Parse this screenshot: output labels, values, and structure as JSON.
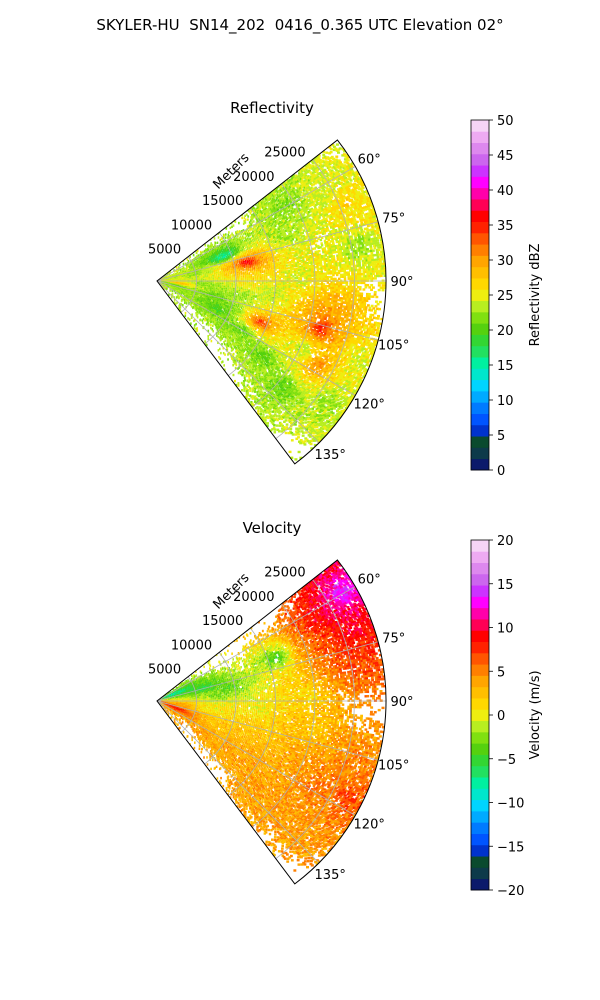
{
  "figure": {
    "suptitle": "SKYLER-HU  SN14_202  0416_0.365 UTC Elevation 02°"
  },
  "chart_data": [
    {
      "type": "heatmap",
      "projection": "polar sector (PPI)",
      "title": "Reflectivity",
      "radial_label": "Meters",
      "radial_ticks": [
        5000,
        10000,
        15000,
        20000,
        25000
      ],
      "radial_tick_labels": [
        "5000",
        "10000",
        "15000",
        "20000",
        "25000"
      ],
      "range_max": 29000,
      "azimuth_range": [
        52,
        143
      ],
      "azimuth_ticks": [
        60,
        75,
        90,
        105,
        120,
        135
      ],
      "azimuth_tick_labels": [
        "60°",
        "75°",
        "90°",
        "105°",
        "120°",
        "135°"
      ],
      "grid": true,
      "colorbar": {
        "label": "Reflectivity dBZ",
        "min": 0,
        "max": 50,
        "ticks": [
          0,
          5,
          10,
          15,
          20,
          25,
          30,
          35,
          40,
          45,
          50
        ],
        "tick_labels": [
          "0",
          "5",
          "10",
          "15",
          "20",
          "25",
          "30",
          "35",
          "40",
          "45",
          "50"
        ],
        "colors": [
          "#0b1a6b",
          "#0d3a4a",
          "#0a4a2e",
          "#0033cc",
          "#0055ff",
          "#007bff",
          "#00aaff",
          "#00d4ff",
          "#00e6cc",
          "#00f0a0",
          "#22e060",
          "#33d633",
          "#55d10f",
          "#80e010",
          "#b8ee20",
          "#eeee10",
          "#ffd800",
          "#ffbf00",
          "#ffa500",
          "#ff7f00",
          "#ff5500",
          "#ff2200",
          "#ff0000",
          "#ff0055",
          "#ff00aa",
          "#ff00ff",
          "#cc33ff",
          "#cc66ee",
          "#dd88ee",
          "#eeaaf2",
          "#f7d4f7"
        ]
      },
      "field_cells": [
        {
          "r": 2500,
          "az": 105,
          "v": 20
        },
        {
          "r": 2000,
          "az": 88,
          "v": 24
        },
        {
          "r": 3000,
          "az": 98,
          "v": 30
        },
        {
          "r": 5000,
          "az": 80,
          "v": 22
        },
        {
          "r": 6000,
          "az": 95,
          "v": 21
        },
        {
          "r": 7500,
          "az": 105,
          "v": 20
        },
        {
          "r": 8500,
          "az": 115,
          "v": 18
        },
        {
          "r": 9000,
          "az": 70,
          "v": 14
        },
        {
          "r": 10500,
          "az": 82,
          "v": 28
        },
        {
          "r": 11500,
          "az": 79,
          "v": 40
        },
        {
          "r": 12000,
          "az": 88,
          "v": 26
        },
        {
          "r": 11000,
          "az": 100,
          "v": 22
        },
        {
          "r": 10000,
          "az": 110,
          "v": 21
        },
        {
          "r": 12500,
          "az": 120,
          "v": 20
        },
        {
          "r": 14000,
          "az": 112,
          "v": 36
        },
        {
          "r": 15000,
          "az": 97,
          "v": 23
        },
        {
          "r": 16500,
          "az": 125,
          "v": 20
        },
        {
          "r": 17000,
          "az": 70,
          "v": 22
        },
        {
          "r": 18000,
          "az": 88,
          "v": 24
        },
        {
          "r": 20000,
          "az": 103,
          "v": 29
        },
        {
          "r": 21500,
          "az": 106,
          "v": 38
        },
        {
          "r": 22500,
          "az": 100,
          "v": 30
        },
        {
          "r": 20500,
          "az": 115,
          "v": 22
        },
        {
          "r": 23000,
          "az": 118,
          "v": 32
        },
        {
          "r": 21000,
          "az": 130,
          "v": 20
        },
        {
          "r": 24000,
          "az": 62,
          "v": 24
        },
        {
          "r": 25500,
          "az": 68,
          "v": 27
        },
        {
          "r": 27000,
          "az": 72,
          "v": 26
        },
        {
          "r": 26000,
          "az": 80,
          "v": 22
        },
        {
          "r": 27500,
          "az": 112,
          "v": 24
        },
        {
          "r": 26500,
          "az": 125,
          "v": 22
        },
        {
          "r": 19000,
          "az": 60,
          "v": 21
        }
      ]
    },
    {
      "type": "heatmap",
      "projection": "polar sector (PPI)",
      "title": "Velocity",
      "radial_label": "Meters",
      "radial_ticks": [
        5000,
        10000,
        15000,
        20000,
        25000
      ],
      "radial_tick_labels": [
        "5000",
        "10000",
        "15000",
        "20000",
        "25000"
      ],
      "range_max": 29000,
      "azimuth_range": [
        52,
        143
      ],
      "azimuth_ticks": [
        60,
        75,
        90,
        105,
        120,
        135
      ],
      "azimuth_tick_labels": [
        "60°",
        "75°",
        "90°",
        "105°",
        "120°",
        "135°"
      ],
      "grid": true,
      "colorbar": {
        "label": "Velocity (m/s)",
        "min": -20,
        "max": 20,
        "ticks": [
          -20,
          -15,
          -10,
          -5,
          0,
          5,
          10,
          15,
          20
        ],
        "tick_labels": [
          "−20",
          "−15",
          "−10",
          "−5",
          "0",
          "5",
          "10",
          "15",
          "20"
        ],
        "colors": [
          "#0b1a6b",
          "#0d3a4a",
          "#0a4a2e",
          "#0033cc",
          "#0055ff",
          "#007bff",
          "#00aaff",
          "#00d4ff",
          "#00e6cc",
          "#00f0a0",
          "#22e060",
          "#33d633",
          "#55d10f",
          "#80e010",
          "#b8ee20",
          "#eeee10",
          "#ffd800",
          "#ffbf00",
          "#ffa500",
          "#ff7f00",
          "#ff5500",
          "#ff2200",
          "#ff0000",
          "#ff0055",
          "#ff00aa",
          "#ff00ff",
          "#cc33ff",
          "#cc66ee",
          "#dd88ee",
          "#eeaaf2",
          "#f7d4f7"
        ]
      },
      "field_cells": [
        {
          "r": 2000,
          "az": 70,
          "v": -9
        },
        {
          "r": 3000,
          "az": 100,
          "v": 4
        },
        {
          "r": 2500,
          "az": 112,
          "v": 9
        },
        {
          "r": 6000,
          "az": 75,
          "v": -6
        },
        {
          "r": 8000,
          "az": 85,
          "v": -3
        },
        {
          "r": 9500,
          "az": 80,
          "v": -4
        },
        {
          "r": 7000,
          "az": 100,
          "v": 0
        },
        {
          "r": 9000,
          "az": 112,
          "v": 2
        },
        {
          "r": 11000,
          "az": 122,
          "v": 4
        },
        {
          "r": 13000,
          "az": 95,
          "v": 0
        },
        {
          "r": 14000,
          "az": 105,
          "v": 2
        },
        {
          "r": 16000,
          "az": 115,
          "v": 3
        },
        {
          "r": 16000,
          "az": 70,
          "v": -5
        },
        {
          "r": 18000,
          "az": 130,
          "v": 4
        },
        {
          "r": 20000,
          "az": 100,
          "v": 2
        },
        {
          "r": 21000,
          "az": 110,
          "v": 4
        },
        {
          "r": 23000,
          "az": 118,
          "v": 6
        },
        {
          "r": 21000,
          "az": 68,
          "v": 6
        },
        {
          "r": 23000,
          "az": 64,
          "v": 9
        },
        {
          "r": 25000,
          "az": 62,
          "v": 11
        },
        {
          "r": 27000,
          "az": 60,
          "v": 15
        },
        {
          "r": 26500,
          "az": 70,
          "v": 10
        },
        {
          "r": 25000,
          "az": 78,
          "v": 7
        },
        {
          "r": 26000,
          "az": 108,
          "v": 5
        },
        {
          "r": 27500,
          "az": 116,
          "v": 7
        },
        {
          "r": 24000,
          "az": 128,
          "v": 4
        },
        {
          "r": 19000,
          "az": 88,
          "v": 1
        }
      ]
    }
  ]
}
